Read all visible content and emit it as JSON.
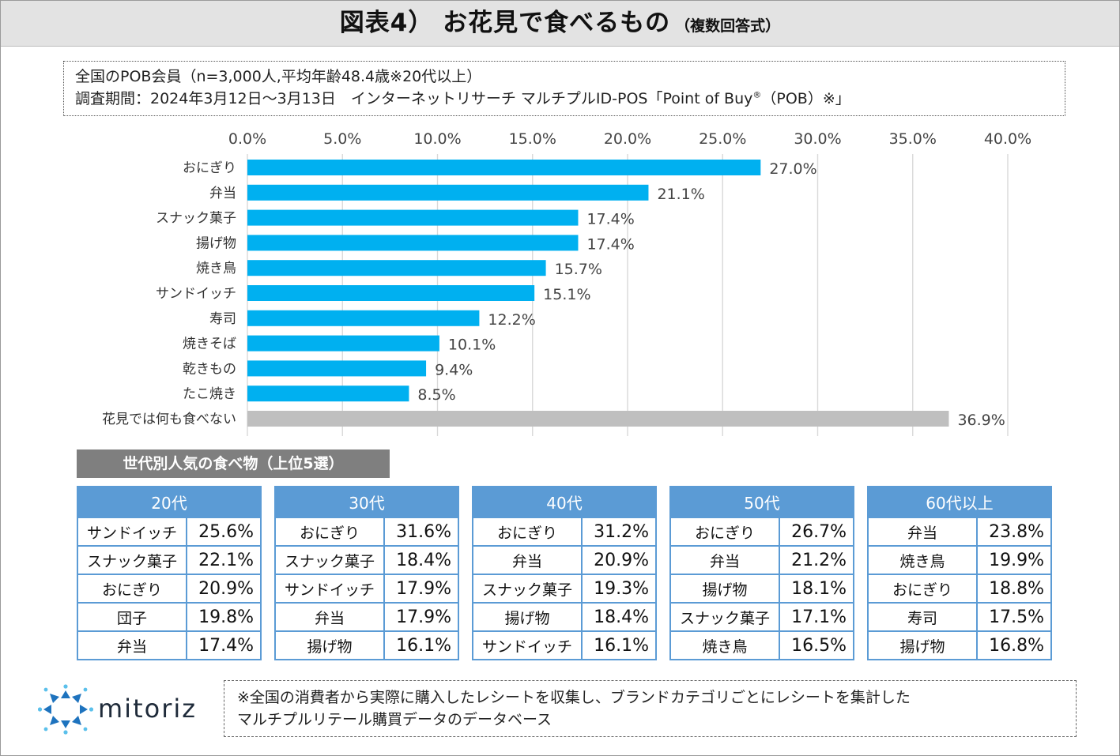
{
  "title": {
    "main": "図表4） お花見で食べるもの",
    "sub": "（複数回答式）"
  },
  "info": {
    "line1": "全国のPOB会員（n=3,000人,平均年齢48.4歳※20代以上）",
    "line2_prefix": "調査期間：2024年3月12日～3月13日　インターネットリサーチ マルチプルID-POS「Point of Buy",
    "line2_reg": "®",
    "line2_suffix": "（POB）※」"
  },
  "chart_data": {
    "type": "bar",
    "orientation": "horizontal",
    "categories": [
      "おにぎり",
      "弁当",
      "スナック菓子",
      "揚げ物",
      "焼き鳥",
      "サンドイッチ",
      "寿司",
      "焼きそば",
      "乾きもの",
      "たこ焼き",
      "花見では何も食べない"
    ],
    "values": [
      27.0,
      21.1,
      17.4,
      17.4,
      15.7,
      15.1,
      12.2,
      10.1,
      9.4,
      8.5,
      36.9
    ],
    "value_labels": [
      "27.0%",
      "21.1%",
      "17.4%",
      "17.4%",
      "15.7%",
      "15.1%",
      "12.2%",
      "10.1%",
      "9.4%",
      "8.5%",
      "36.9%"
    ],
    "xlim": [
      0,
      40
    ],
    "ticks": [
      0,
      5,
      10,
      15,
      20,
      25,
      30,
      35,
      40
    ],
    "tick_labels": [
      "0.0%",
      "5.0%",
      "10.0%",
      "15.0%",
      "20.0%",
      "25.0%",
      "30.0%",
      "35.0%",
      "40.0%"
    ],
    "axis_position": "top",
    "grid": true,
    "colors": {
      "bar": "#00b0f0",
      "bar_none": "#bfbfbf",
      "grid": "#d9d9d9"
    }
  },
  "generation": {
    "header": "世代別人気の食べ物（上位5選）",
    "tables": [
      {
        "title": "20代",
        "rows": [
          [
            "サンドイッチ",
            "25.6%"
          ],
          [
            "スナック菓子",
            "22.1%"
          ],
          [
            "おにぎり",
            "20.9%"
          ],
          [
            "団子",
            "19.8%"
          ],
          [
            "弁当",
            "17.4%"
          ]
        ]
      },
      {
        "title": "30代",
        "rows": [
          [
            "おにぎり",
            "31.6%"
          ],
          [
            "スナック菓子",
            "18.4%"
          ],
          [
            "サンドイッチ",
            "17.9%"
          ],
          [
            "弁当",
            "17.9%"
          ],
          [
            "揚げ物",
            "16.1%"
          ]
        ]
      },
      {
        "title": "40代",
        "rows": [
          [
            "おにぎり",
            "31.2%"
          ],
          [
            "弁当",
            "20.9%"
          ],
          [
            "スナック菓子",
            "19.3%"
          ],
          [
            "揚げ物",
            "18.4%"
          ],
          [
            "サンドイッチ",
            "16.1%"
          ]
        ]
      },
      {
        "title": "50代",
        "rows": [
          [
            "おにぎり",
            "26.7%"
          ],
          [
            "弁当",
            "21.2%"
          ],
          [
            "揚げ物",
            "18.1%"
          ],
          [
            "スナック菓子",
            "17.1%"
          ],
          [
            "焼き鳥",
            "16.5%"
          ]
        ]
      },
      {
        "title": "60代以上",
        "rows": [
          [
            "弁当",
            "23.8%"
          ],
          [
            "焼き鳥",
            "19.9%"
          ],
          [
            "おにぎり",
            "18.8%"
          ],
          [
            "寿司",
            "17.5%"
          ],
          [
            "揚げ物",
            "16.8%"
          ]
        ]
      }
    ],
    "colors": {
      "header_bg": "#7f7f7f",
      "table": "#5b9bd5"
    }
  },
  "logo": {
    "text": "mitoriz"
  },
  "footnote": {
    "line1": "※全国の消費者から実際に購入したレシートを収集し、ブランドカテゴリごとにレシートを集計した",
    "line2": "マルチプルリテール購買データのデータベース"
  }
}
